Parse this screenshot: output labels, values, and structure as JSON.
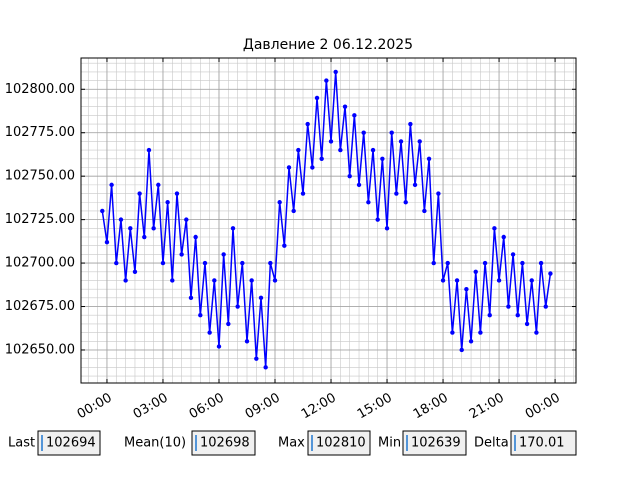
{
  "chart_data": {
    "type": "line",
    "title": "Давление 2 06.12.2025",
    "x": [
      -0.25,
      0,
      0.25,
      0.5,
      0.75,
      1,
      1.25,
      1.5,
      1.75,
      2,
      2.25,
      2.5,
      2.75,
      3,
      3.25,
      3.5,
      3.75,
      4,
      4.25,
      4.5,
      4.75,
      5,
      5.25,
      5.5,
      5.75,
      6,
      6.25,
      6.5,
      6.75,
      7,
      7.25,
      7.5,
      7.75,
      8,
      8.25,
      8.5,
      8.75,
      9,
      9.25,
      9.5,
      9.75,
      10,
      10.25,
      10.5,
      10.75,
      11,
      11.25,
      11.5,
      11.75,
      12,
      12.25,
      12.5,
      12.75,
      13,
      13.25,
      13.5,
      13.75,
      14,
      14.25,
      14.5,
      14.75,
      15,
      15.25,
      15.5,
      15.75,
      16,
      16.25,
      16.5,
      16.75,
      17,
      17.25,
      17.5,
      17.75,
      18,
      18.25,
      18.5,
      18.75,
      19,
      19.25,
      19.5,
      19.75,
      20,
      20.25,
      20.5,
      20.75,
      21,
      21.25,
      21.5,
      21.75,
      22,
      22.25,
      22.5,
      22.75,
      23,
      23.25,
      23.5,
      23.75
    ],
    "series": [
      {
        "color": "#0000ff",
        "values": [
          102730,
          102712,
          102745,
          102700,
          102725,
          102690,
          102720,
          102695,
          102740,
          102715,
          102765,
          102720,
          102745,
          102700,
          102735,
          102690,
          102740,
          102705,
          102725,
          102680,
          102715,
          102670,
          102700,
          102660,
          102690,
          102652,
          102705,
          102665,
          102720,
          102675,
          102700,
          102655,
          102690,
          102645,
          102680,
          102640,
          102700,
          102690,
          102735,
          102710,
          102755,
          102730,
          102765,
          102740,
          102780,
          102755,
          102795,
          102760,
          102805,
          102770,
          102810,
          102765,
          102790,
          102750,
          102785,
          102745,
          102775,
          102735,
          102765,
          102725,
          102760,
          102720,
          102775,
          102740,
          102770,
          102735,
          102780,
          102745,
          102770,
          102730,
          102760,
          102700,
          102740,
          102690,
          102700,
          102660,
          102690,
          102650,
          102685,
          102655,
          102695,
          102660,
          102700,
          102670,
          102720,
          102690,
          102715,
          102675,
          102705,
          102670,
          102700,
          102665,
          102690,
          102660,
          102700,
          102675,
          102694
        ]
      }
    ],
    "xlim": [
      -1.39,
      25.12
    ],
    "xticks": [
      {
        "value": 0,
        "label": "00:00"
      },
      {
        "value": 3,
        "label": "03:00"
      },
      {
        "value": 6,
        "label": "06:00"
      },
      {
        "value": 9,
        "label": "09:00"
      },
      {
        "value": 12,
        "label": "12:00"
      },
      {
        "value": 15,
        "label": "15:00"
      },
      {
        "value": 18,
        "label": "18:00"
      },
      {
        "value": 21,
        "label": "21:00"
      },
      {
        "value": 24,
        "label": "00:00"
      }
    ],
    "ylim": [
      102631,
      102818
    ],
    "yticks": [
      {
        "value": 102650,
        "label": "102650.00"
      },
      {
        "value": 102675,
        "label": "102675.00"
      },
      {
        "value": 102700,
        "label": "102700.00"
      },
      {
        "value": 102725,
        "label": "102725.00"
      },
      {
        "value": 102750,
        "label": "102750.00"
      },
      {
        "value": 102775,
        "label": "102775.00"
      },
      {
        "value": 102800,
        "label": "102800.00"
      }
    ],
    "grid": true,
    "minor_grid": true,
    "markers": true
  },
  "stats": [
    {
      "label": "Last",
      "value": "102694"
    },
    {
      "label": "Mean(10)",
      "value": "102698"
    },
    {
      "label": "Max",
      "value": "102810"
    },
    {
      "label": "Min",
      "value": "102639"
    },
    {
      "label": "Delta",
      "value": "170.01"
    }
  ]
}
